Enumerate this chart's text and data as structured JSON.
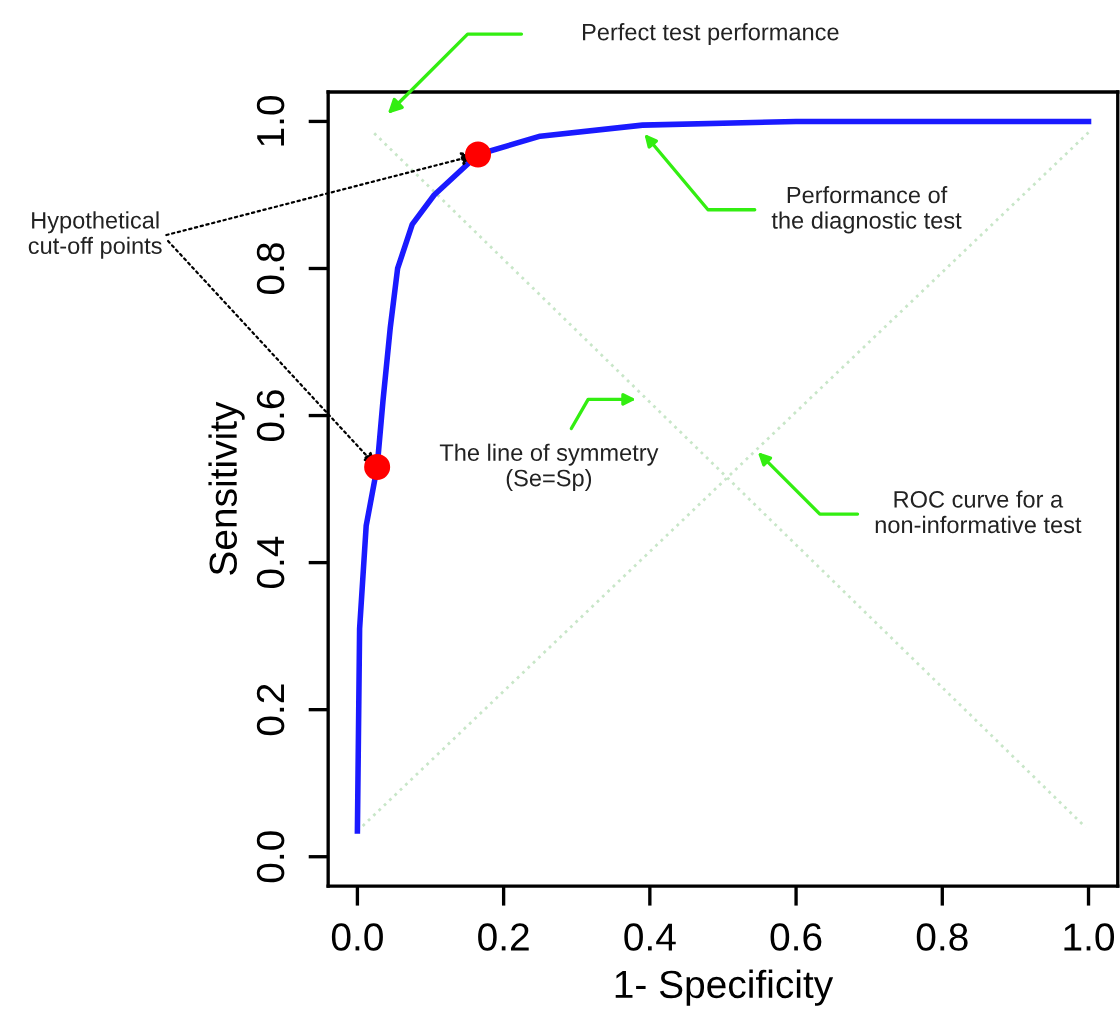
{
  "chart_data": {
    "type": "line",
    "xlabel": "1- Specificity",
    "ylabel": "Sensitivity",
    "xlim": [
      -0.04,
      1.04
    ],
    "ylim": [
      -0.04,
      1.04
    ],
    "xticks": [
      {
        "value": 0,
        "label": "0.0"
      },
      0.2,
      0.4,
      0.6,
      0.8,
      {
        "value": 1,
        "label": "1.0"
      }
    ],
    "yticks": [
      {
        "value": 0,
        "label": "0.0"
      },
      0.2,
      0.4,
      0.6,
      0.8,
      {
        "value": 1,
        "label": "1.0"
      }
    ],
    "grid": false,
    "legend": false,
    "series": [
      {
        "color": "#c8e6c8",
        "line_style": "dotted",
        "marker": "none",
        "x": [
          0.023,
          0.996
        ],
        "values": [
          0.984,
          0.04
        ]
      },
      {
        "color": "#c8e6c8",
        "line_style": "dotted",
        "marker": "none",
        "x": [
          0.0,
          1.0
        ],
        "values": [
          0.035,
          0.985
        ]
      },
      {
        "color": "#1a1aff",
        "line_style": "solid",
        "marker": "none",
        "x": [
          0.0,
          0.003,
          0.012,
          0.027,
          0.035,
          0.045,
          0.055,
          0.075,
          0.105,
          0.165,
          0.25,
          0.39,
          0.6,
          1.0
        ],
        "values": [
          0.035,
          0.31,
          0.45,
          0.53,
          0.62,
          0.72,
          0.8,
          0.86,
          0.9,
          0.955,
          0.98,
          0.995,
          1.0,
          1.0
        ]
      },
      {
        "type": "scatter",
        "color": "#ff0000",
        "marker": "circle",
        "x": [
          0.027,
          0.165
        ],
        "values": [
          0.53,
          0.955
        ]
      }
    ],
    "annotations": [
      "Perfect test performance",
      {
        "text": "Performance of\nthe diagnostic test",
        "x": 0.39,
        "y": 0.986
      },
      {
        "text": "The line of symmetry\n(Se=Sp)",
        "x": 0.385,
        "y": 0.622
      },
      {
        "text": "ROC curve for a\nnon-informative test",
        "x": 0.545,
        "y": 0.553
      },
      {
        "text": "Hypothetical\ncut-off points",
        "x": 0.027,
        "y": 0.53
      }
    ]
  }
}
